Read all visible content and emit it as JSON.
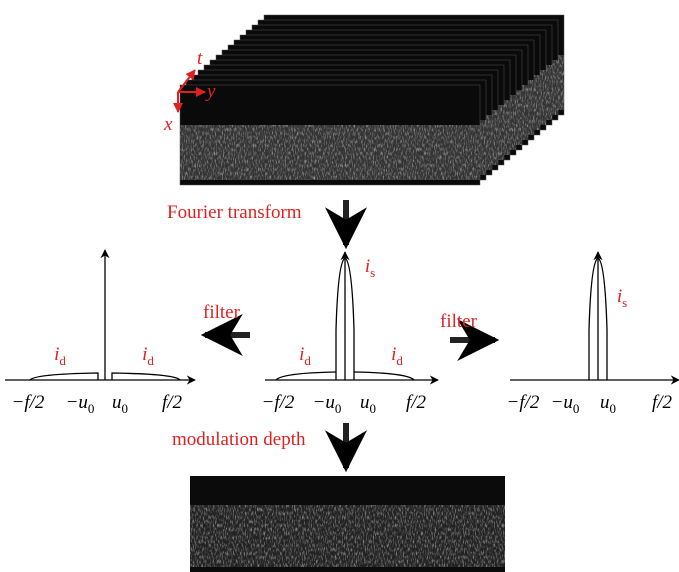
{
  "axis_labels": {
    "x": "x",
    "y": "y",
    "t": "t"
  },
  "top_arrow_label": "Fourier transform",
  "bottom_arrow_label": "modulation depth",
  "left_arrow_label": "filter",
  "right_arrow_label": "filter",
  "panels": [
    {
      "components": [
        {
          "text": "i",
          "sub": "d"
        },
        {
          "text": "i",
          "sub": "d"
        }
      ],
      "ticks": [
        {
          "text": "−f/2"
        },
        {
          "text": "−u",
          "sub": "0"
        },
        {
          "text": "u",
          "sub": "0"
        },
        {
          "text": "f/2"
        }
      ]
    },
    {
      "components": [
        {
          "text": "i",
          "sub": "s"
        },
        {
          "text": "i",
          "sub": "d"
        },
        {
          "text": "i",
          "sub": "d"
        }
      ],
      "ticks": [
        {
          "text": "−f/2"
        },
        {
          "text": "−u",
          "sub": "0"
        },
        {
          "text": "u",
          "sub": "0"
        },
        {
          "text": "f/2"
        }
      ]
    },
    {
      "components": [
        {
          "text": "i",
          "sub": "s"
        }
      ],
      "ticks": [
        {
          "text": "−f/2"
        },
        {
          "text": "−u",
          "sub": "0"
        },
        {
          "text": "u",
          "sub": "0"
        },
        {
          "text": "f/2"
        }
      ]
    }
  ]
}
